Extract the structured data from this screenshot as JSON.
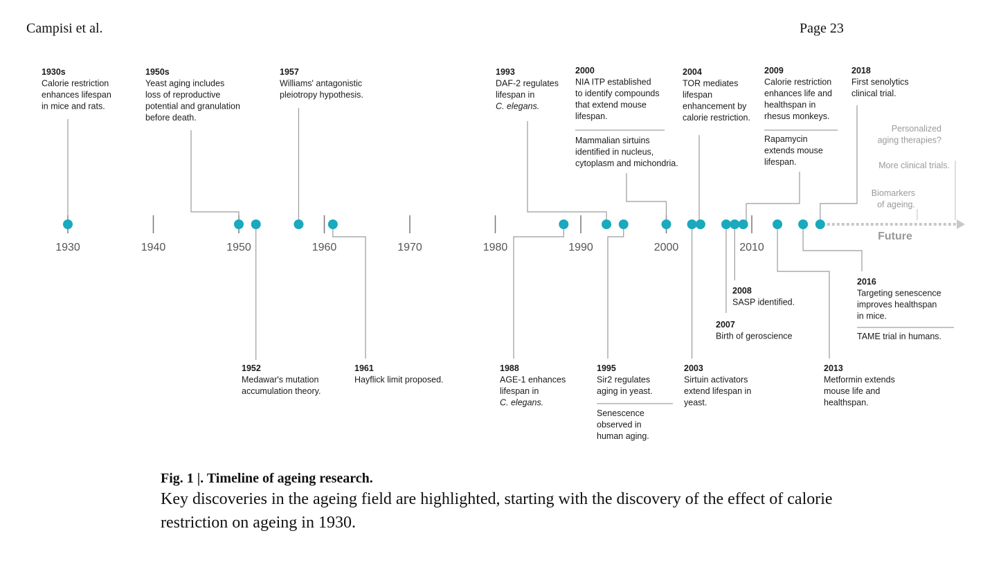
{
  "header": {
    "author": "Campisi et al.",
    "page": "Page 23"
  },
  "figure": {
    "caption_title": "Fig. 1 |. Timeline of ageing research.",
    "caption_body": "Key discoveries in the ageing field are highlighted, starting with the discovery of the effect of calorie restriction on ageing in 1930."
  },
  "chart_data": {
    "type": "timeline",
    "axis": {
      "start": 1930,
      "end": 2018,
      "ticks": [
        1930,
        1940,
        1950,
        1960,
        1970,
        1980,
        1990,
        2000,
        2010
      ],
      "future_label": "Future"
    },
    "colors": {
      "dot": "#1aa9bd",
      "axis": "#7a7a7a",
      "connector": "#9a9a9a",
      "future": "#c8c8c8"
    },
    "events": [
      {
        "year": 1930,
        "label": "1930s",
        "lines": [
          "Calorie restriction",
          "enhances lifespan",
          "in mice and rats."
        ]
      },
      {
        "year": 1950,
        "label": "1950s",
        "lines": [
          "Yeast aging includes",
          "loss of reproductive",
          "potential and granulation",
          "before death."
        ]
      },
      {
        "year": 1952,
        "label": "1952",
        "lines": [
          "Medawar's mutation",
          "accumulation theory."
        ]
      },
      {
        "year": 1957,
        "label": "1957",
        "lines": [
          "Williams' antagonistic",
          "pleiotropy hypothesis."
        ]
      },
      {
        "year": 1961,
        "label": "1961",
        "lines": [
          "Hayflick limit proposed."
        ]
      },
      {
        "year": 1988,
        "label": "1988",
        "lines": [
          "AGE-1 enhances",
          "lifespan in",
          "C. elegans."
        ]
      },
      {
        "year": 1993,
        "label": "1993",
        "lines": [
          "DAF-2 regulates",
          "lifespan in",
          "C. elegans."
        ]
      },
      {
        "year": 1995,
        "label": "1995",
        "lines": [
          "Sir2 regulates",
          "aging in yeast."
        ],
        "extra": [
          "Senescence",
          "observed in",
          "human aging."
        ]
      },
      {
        "year": 2000,
        "label": "2000",
        "lines": [
          "NIA ITP established",
          "to identify compounds",
          "that extend mouse",
          "lifespan."
        ],
        "extra": [
          "Mammalian sirtuins",
          "identified in nucleus,",
          "cytoplasm and michondria."
        ]
      },
      {
        "year": 2003,
        "label": "2003",
        "lines": [
          "Sirtuin activators",
          "extend lifespan in",
          "yeast."
        ]
      },
      {
        "year": 2004,
        "label": "2004",
        "lines": [
          "TOR mediates",
          "lifespan",
          "enhancement by",
          "calorie restriction."
        ]
      },
      {
        "year": 2007,
        "label": "2007",
        "lines": [
          "Birth of geroscience"
        ]
      },
      {
        "year": 2008,
        "label": "2008",
        "lines": [
          "SASP identified."
        ]
      },
      {
        "year": 2009,
        "label": "2009",
        "lines": [
          "Calorie restriction",
          "enhances life and",
          "healthspan in",
          "rhesus monkeys."
        ],
        "extra": [
          "Rapamycin",
          "extends mouse",
          "lifespan."
        ]
      },
      {
        "year": 2013,
        "label": "2013",
        "lines": [
          "Metformin extends",
          "mouse life and",
          "healthspan."
        ]
      },
      {
        "year": 2016,
        "label": "2016",
        "lines": [
          "Targeting senescence",
          "improves healthspan",
          "in mice."
        ],
        "extra": [
          "TAME trial in humans."
        ]
      },
      {
        "year": 2018,
        "label": "2018",
        "lines": [
          "First senolytics",
          "clinical trial."
        ]
      }
    ],
    "future": [
      {
        "lines": [
          "Personalized",
          "aging therapies?"
        ]
      },
      {
        "lines": [
          "More clinical trials."
        ]
      },
      {
        "lines": [
          "Biomarkers",
          "of ageing."
        ]
      }
    ]
  }
}
